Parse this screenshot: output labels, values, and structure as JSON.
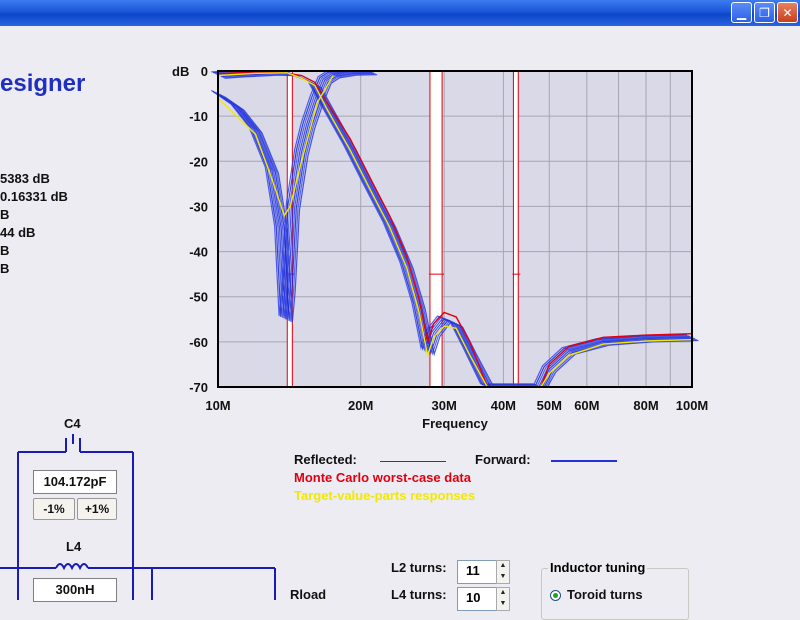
{
  "window": {
    "minimize_glyph": "▁",
    "restore_glyph": "❐",
    "close_glyph": "✕"
  },
  "app_title": "esigner",
  "stats": [
    "5383 dB",
    "0.16331 dB",
    "B",
    "44 dB",
    "B",
    "B"
  ],
  "chart_data": {
    "type": "line",
    "y_label": "dB",
    "x_label": "Frequency",
    "x_scale": "log",
    "x_range_hz": [
      10000000,
      100000000
    ],
    "y_range_db": [
      -70,
      0
    ],
    "y_ticks": [
      {
        "v": 0,
        "label": "0"
      },
      {
        "v": -10,
        "label": "-10"
      },
      {
        "v": -20,
        "label": "-20"
      },
      {
        "v": -30,
        "label": "-30"
      },
      {
        "v": -40,
        "label": "-40"
      },
      {
        "v": -50,
        "label": "-50"
      },
      {
        "v": -60,
        "label": "-60"
      },
      {
        "v": -70,
        "label": "-70"
      }
    ],
    "x_ticks": [
      {
        "v": 10,
        "label": "10M"
      },
      {
        "v": 20,
        "label": "20M"
      },
      {
        "v": 30,
        "label": "30M"
      },
      {
        "v": 40,
        "label": "40M"
      },
      {
        "v": 50,
        "label": "50M"
      },
      {
        "v": 60,
        "label": "60M"
      },
      {
        "v": 80,
        "label": "80M"
      },
      {
        "v": 100,
        "label": "100M"
      }
    ],
    "x_grid_mhz": [
      20,
      30,
      40,
      50,
      60,
      70,
      80,
      90
    ],
    "grid": true,
    "band_markers_mhz": [
      {
        "from": 14.0,
        "to": 14.35,
        "level_db": -45,
        "color": "#e00010"
      },
      {
        "from": 28.0,
        "to": 29.7,
        "level_db": -45,
        "color": "#e00010"
      },
      {
        "from": 42.0,
        "to": 43.0,
        "level_db": -45,
        "color": "#e00010"
      }
    ],
    "series": [
      {
        "kind": "reflected",
        "color": "#2233dd",
        "points_mhz_db": [
          [
            10,
            -5
          ],
          [
            11,
            -8
          ],
          [
            12,
            -13
          ],
          [
            13,
            -22
          ],
          [
            13.6,
            -35
          ],
          [
            13.9,
            -55
          ],
          [
            14.1,
            -48
          ],
          [
            14.4,
            -30
          ],
          [
            15,
            -18
          ],
          [
            15.5,
            -12
          ],
          [
            16.2,
            -6
          ],
          [
            16.8,
            -2
          ],
          [
            17.5,
            -0.8
          ],
          [
            19,
            -0.2
          ],
          [
            21,
            -0.1
          ]
        ]
      },
      {
        "kind": "forward",
        "color": "#2233dd",
        "points_mhz_db": [
          [
            10,
            -0.9
          ],
          [
            11,
            -0.6
          ],
          [
            12,
            -0.4
          ],
          [
            13,
            -0.2
          ],
          [
            14,
            -0.3
          ],
          [
            15,
            -1.5
          ],
          [
            16,
            -3
          ],
          [
            17,
            -8
          ],
          [
            19,
            -17
          ],
          [
            21,
            -26
          ],
          [
            23,
            -34
          ],
          [
            25,
            -43
          ],
          [
            26.5,
            -52
          ],
          [
            27.7,
            -62
          ],
          [
            28.5,
            -58
          ],
          [
            30,
            -55
          ],
          [
            31.8,
            -56
          ],
          [
            34,
            -62
          ],
          [
            37,
            -70
          ],
          [
            48,
            -70
          ],
          [
            50,
            -66
          ],
          [
            55,
            -62
          ],
          [
            65,
            -60
          ],
          [
            80,
            -59.3
          ],
          [
            100,
            -59
          ]
        ]
      },
      {
        "kind": "worst_case",
        "color": "#e00010",
        "points_mhz_db": [
          [
            10,
            -0.6
          ],
          [
            11,
            -0.4
          ],
          [
            13,
            -0.2
          ],
          [
            14,
            -0.5
          ],
          [
            15,
            -1
          ],
          [
            16,
            -2.5
          ],
          [
            17,
            -7
          ],
          [
            19,
            -15
          ],
          [
            21,
            -24
          ],
          [
            23,
            -32
          ],
          [
            25,
            -41
          ],
          [
            26.5,
            -50
          ],
          [
            27.7,
            -60
          ],
          [
            28.5,
            -56
          ],
          [
            30,
            -53.5
          ],
          [
            31.8,
            -54.5
          ],
          [
            34,
            -60
          ],
          [
            37,
            -70
          ],
          [
            48,
            -70
          ],
          [
            50,
            -65
          ],
          [
            55,
            -61
          ],
          [
            65,
            -59
          ],
          [
            80,
            -58.5
          ],
          [
            100,
            -58.2
          ]
        ]
      },
      {
        "kind": "target",
        "color": "#f2e800",
        "points_mhz_db": [
          [
            10,
            -1
          ],
          [
            12,
            -0.5
          ],
          [
            14,
            -0.4
          ],
          [
            15,
            -1.6
          ],
          [
            16,
            -3.2
          ],
          [
            17,
            -8.5
          ],
          [
            19,
            -17.5
          ],
          [
            21,
            -26.5
          ],
          [
            23,
            -34.5
          ],
          [
            25,
            -43.5
          ],
          [
            26.5,
            -53
          ],
          [
            27.7,
            -63
          ],
          [
            28.5,
            -59
          ],
          [
            30,
            -56.5
          ],
          [
            31.8,
            -57
          ],
          [
            34,
            -63
          ],
          [
            37,
            -70
          ],
          [
            48,
            -70
          ],
          [
            50,
            -67
          ],
          [
            55,
            -63
          ],
          [
            65,
            -60.5
          ],
          [
            80,
            -59.8
          ],
          [
            100,
            -59.5
          ]
        ]
      },
      {
        "kind": "target-reflected",
        "color": "#f2e800",
        "points_mhz_db": [
          [
            10,
            -6
          ],
          [
            12,
            -14
          ],
          [
            13,
            -24
          ],
          [
            13.8,
            -32
          ],
          [
            14.2,
            -30
          ],
          [
            15,
            -20
          ],
          [
            16.2,
            -7
          ],
          [
            17.5,
            -1
          ]
        ]
      }
    ]
  },
  "legend": {
    "reflected_label": "Reflected:",
    "forward_label": "Forward:",
    "monte_carlo_label": "Monte Carlo worst-case data",
    "target_label": "Target-value-parts responses"
  },
  "schematic": {
    "c4_label": "C4",
    "c4_value": "104.172pF",
    "minus_label": "-1%",
    "plus_label": "+1%",
    "l4_label": "L4",
    "l4_value": "300nH",
    "rload_label": "Rload"
  },
  "turns": {
    "l2_label": "L2 turns:",
    "l2_value": "11",
    "l4_label": "L4 turns:",
    "l4_value": "10"
  },
  "inductor_tuning": {
    "title": "Inductor tuning",
    "option_label": "Toroid turns"
  }
}
